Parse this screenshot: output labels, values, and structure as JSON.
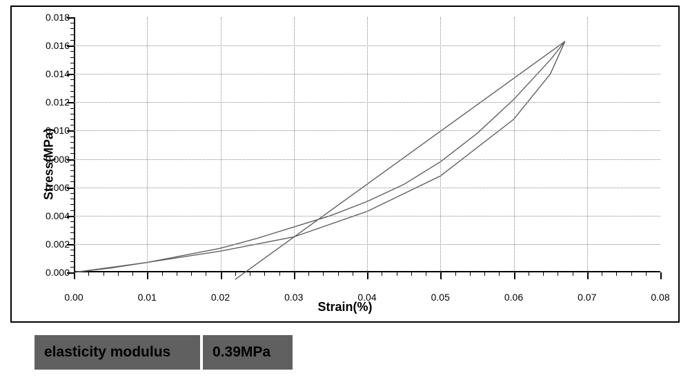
{
  "chart": {
    "type": "line",
    "xlabel": "Strain(%)",
    "ylabel": "Stress(MPa)",
    "title_fontsize": 18,
    "tick_fontsize": 14,
    "xlim": [
      0.0,
      0.08
    ],
    "ylim": [
      0.0,
      0.018
    ],
    "xtick_step": 0.01,
    "ytick_step": 0.002,
    "x_ticks": [
      "0.00",
      "0.01",
      "0.02",
      "0.03",
      "0.04",
      "0.05",
      "0.06",
      "0.07",
      "0.08"
    ],
    "y_ticks": [
      "0.000",
      "0.002",
      "0.004",
      "0.006",
      "0.008",
      "0.010",
      "0.012",
      "0.014",
      "0.016",
      "0.018"
    ],
    "x_minor_per_major": 5,
    "y_minor_per_major": 5,
    "background_color": "#ffffff",
    "border_color": "#000000",
    "grid_color": "#888888",
    "grid_style": "dotted",
    "line_color": "#606060",
    "line_width": 1.4,
    "curves": {
      "loading": [
        [
          0.0,
          0.0
        ],
        [
          0.01,
          0.0007
        ],
        [
          0.02,
          0.0015
        ],
        [
          0.03,
          0.0025
        ],
        [
          0.04,
          0.0043
        ],
        [
          0.05,
          0.0068
        ],
        [
          0.06,
          0.0108
        ],
        [
          0.065,
          0.014
        ],
        [
          0.067,
          0.0163
        ]
      ],
      "unloading": [
        [
          0.067,
          0.0163
        ],
        [
          0.065,
          0.015
        ],
        [
          0.06,
          0.0122
        ],
        [
          0.055,
          0.0098
        ],
        [
          0.05,
          0.0078
        ],
        [
          0.045,
          0.0062
        ],
        [
          0.04,
          0.005
        ],
        [
          0.035,
          0.004
        ],
        [
          0.03,
          0.0032
        ],
        [
          0.025,
          0.0024
        ],
        [
          0.02,
          0.0017
        ],
        [
          0.015,
          0.0012
        ],
        [
          0.01,
          0.0007
        ],
        [
          0.005,
          0.0003
        ],
        [
          0.0,
          0.0
        ]
      ],
      "tangent": [
        [
          0.022,
          -0.0005
        ],
        [
          0.067,
          0.0163
        ]
      ]
    }
  },
  "info_table": {
    "label": "elasticity modulus",
    "value": "0.39MPa",
    "bg_color": "#606060",
    "text_color": "#000000",
    "fontsize": 21
  }
}
